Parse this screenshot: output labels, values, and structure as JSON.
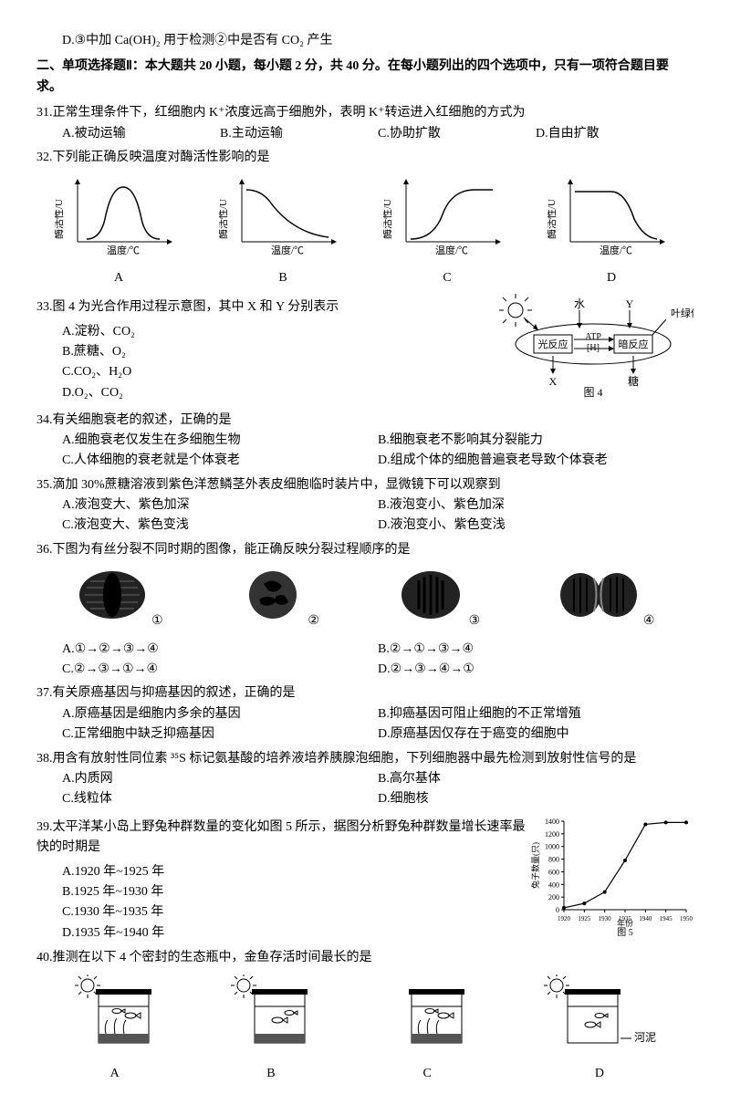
{
  "q30d": "D.③中加 Ca(OH)₂ 用于检测②中是否有 CO₂ 产生",
  "section2": "二、单项选择题Ⅱ：本大题共 20 小题，每小题 2 分，共 40 分。在每小题列出的四个选项中，只有一项符合题目要求。",
  "q31": {
    "stem": "31.正常生理条件下，红细胞内 K⁺浓度远高于细胞外，表明 K⁺转运进入红细胞的方式为",
    "A": "A.被动运输",
    "B": "B.主动运输",
    "C": "C.协助扩散",
    "D": "D.自由扩散"
  },
  "q32": {
    "stem": "32.下列能正确反映温度对酶活性影响的是",
    "ylabel": "酶活性/U",
    "xlabel": "温度/℃",
    "labels": {
      "A": "A",
      "B": "B",
      "C": "C",
      "D": "D"
    }
  },
  "q33": {
    "stem": "33.图 4 为光合作用过程示意图，其中 X 和 Y 分别表示",
    "A": "A.淀粉、CO₂",
    "B": "B.蔗糖、O₂",
    "C": "C.CO₂、H₂O",
    "D": "D.O₂、CO₂",
    "diagram": {
      "water": "水",
      "Y": "Y",
      "chloroplast": "叶绿体",
      "light": "光反应",
      "atp": "ATP",
      "h": "[H]",
      "dark": "暗反应",
      "X": "X",
      "sugar": "糖",
      "caption": "图 4"
    }
  },
  "q34": {
    "stem": "34.有关细胞衰老的叙述，正确的是",
    "A": "A.细胞衰老仅发生在多细胞生物",
    "B": "B.细胞衰老不影响其分裂能力",
    "C": "C.人体细胞的衰老就是个体衰老",
    "D": "D.组成个体的细胞普遍衰老导致个体衰老"
  },
  "q35": {
    "stem": "35.滴加 30%蔗糖溶液到紫色洋葱鳞茎外表皮细胞临时装片中，显微镜下可以观察到",
    "A": "A.液泡变大、紫色加深",
    "B": "B.液泡变小、紫色加深",
    "C": "C.液泡变大、紫色变浅",
    "D": "D.液泡变小、紫色变浅"
  },
  "q36": {
    "stem": "36.下图为有丝分裂不同时期的图像，能正确反映分裂过程顺序的是",
    "labels": {
      "1": "①",
      "2": "②",
      "3": "③",
      "4": "④"
    },
    "A": "A.①→②→③→④",
    "B": "B.②→①→③→④",
    "C": "C.②→③→①→④",
    "D": "D.②→③→④→①"
  },
  "q37": {
    "stem": "37.有关原癌基因与抑癌基因的叙述，正确的是",
    "A": "A.原癌基因是细胞内多余的基因",
    "B": "B.抑癌基因可阻止细胞的不正常增殖",
    "C": "C.正常细胞中缺乏抑癌基因",
    "D": "D.原癌基因仅存在于癌变的细胞中"
  },
  "q38": {
    "stem": "38.用含有放射性同位素 ³⁵S 标记氨基酸的培养液培养胰腺泡细胞，下列细胞器中最先检测到放射性信号的是",
    "A": "A.内质网",
    "B": "B.高尔基体",
    "C": "C.线粒体",
    "D": "D.细胞核"
  },
  "q39": {
    "stem": "39.太平洋某小岛上野兔种群数量的变化如图 5 所示，据图分析野兔种群数量增长速率最快的时期是",
    "A": "A.1920 年~1925 年",
    "B": "B.1925 年~1930 年",
    "C": "C.1930 年~1935 年",
    "D": "D.1935 年~1940 年",
    "chart": {
      "ylabel": "兔子数量(只)",
      "xlabel": "年份",
      "caption": "图 5",
      "yticks": [
        0,
        200,
        400,
        600,
        800,
        1000,
        1200,
        1400
      ],
      "xticks": [
        1920,
        1925,
        1930,
        1935,
        1940,
        1945,
        1950
      ],
      "points": [
        [
          1920,
          30
        ],
        [
          1925,
          100
        ],
        [
          1930,
          280
        ],
        [
          1935,
          780
        ],
        [
          1940,
          1350
        ],
        [
          1945,
          1380
        ],
        [
          1950,
          1380
        ]
      ]
    }
  },
  "q40": {
    "stem": "40.推测在以下 4 个密封的生态瓶中，金鱼存活时间最长的是",
    "mud": "河泥",
    "labels": {
      "A": "A",
      "B": "B",
      "C": "C",
      "D": "D"
    }
  }
}
